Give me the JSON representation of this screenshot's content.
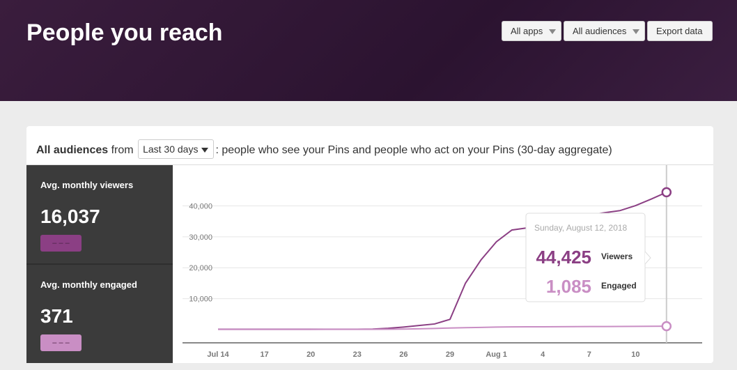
{
  "header": {
    "title": "People you reach",
    "controls": [
      "All apps",
      "All audiences"
    ],
    "export": "Export data"
  },
  "subheader": {
    "bold": "All audiences",
    "from": "from",
    "select": "Last 30 days",
    "description": ": people who see your Pins and people who act on your Pins (30-day aggregate)"
  },
  "panels": [
    {
      "label": "Avg. monthly viewers",
      "value": "16,037",
      "swatch": "– – –"
    },
    {
      "label": "Avg. monthly engaged",
      "value": "371",
      "swatch": "– – –"
    }
  ],
  "tooltip": {
    "date": "Sunday, August 12, 2018",
    "rows": [
      {
        "value": "44,425",
        "label": "Viewers"
      },
      {
        "value": "1,085",
        "label": "Engaged"
      }
    ]
  },
  "chart_data": {
    "type": "line",
    "categories": [
      "Jul 14",
      null,
      null,
      "17",
      null,
      null,
      "20",
      null,
      null,
      "23",
      null,
      null,
      "26",
      null,
      null,
      "29",
      null,
      null,
      "Aug 1",
      null,
      null,
      "4",
      null,
      null,
      "7",
      null,
      null,
      "10",
      null,
      null
    ],
    "series": [
      {
        "name": "Viewers",
        "color": "#8b3f84",
        "values": [
          100,
          100,
          100,
          100,
          100,
          100,
          100,
          100,
          100,
          100,
          150,
          400,
          800,
          1300,
          1800,
          3300,
          15000,
          22500,
          28400,
          32200,
          32900,
          34000,
          35000,
          36000,
          37000,
          37800,
          38500,
          40100,
          42200,
          44425
        ]
      },
      {
        "name": "Engaged",
        "color": "#c98ec4",
        "values": [
          50,
          50,
          50,
          50,
          50,
          50,
          50,
          60,
          60,
          70,
          80,
          100,
          150,
          250,
          350,
          500,
          600,
          700,
          800,
          850,
          880,
          900,
          920,
          940,
          960,
          980,
          1000,
          1020,
          1050,
          1085
        ]
      }
    ],
    "ylim": [
      -4300,
      53200
    ],
    "yticks": [
      {
        "value": 10000,
        "label": "10,000"
      },
      {
        "value": 20000,
        "label": "20,000"
      },
      {
        "value": 30000,
        "label": "30,000"
      },
      {
        "value": 40000,
        "label": "40,000"
      }
    ],
    "grid": true
  }
}
